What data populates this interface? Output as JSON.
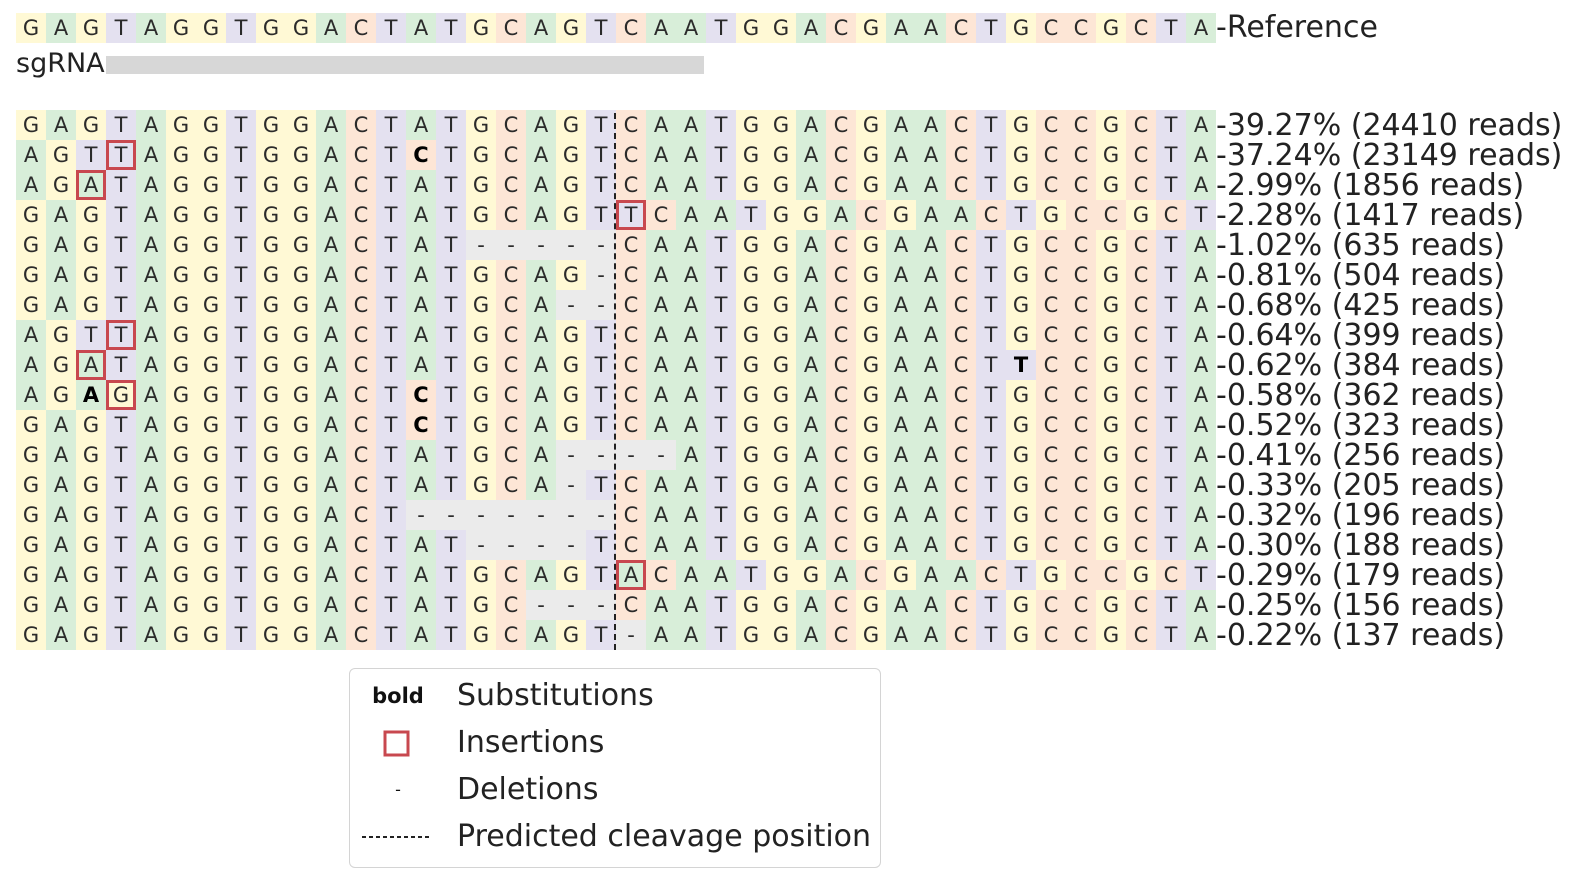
{
  "colors": {
    "A": "#d8eed9",
    "C": "#fde6d6",
    "G": "#fff9d5",
    "T": "#e4e1f0",
    "-": "#ebebeb",
    "insertion": "#c8484f"
  },
  "reference": {
    "sequence": "GAGTAGGTGGACTATGCAGTCAATGGACGAACTGCCGCTA",
    "label": "Reference"
  },
  "sgrna": {
    "label": "sgRNA"
  },
  "rows": [
    {
      "seq": "GAGTAGGTGGACTATGCAGTCAATGGACGAACTGCCGCTA",
      "label": "39.27% (24410 reads)",
      "bold": [],
      "ins": []
    },
    {
      "seq": "AGTTAGGTGGACTCTGCAGTCAATGGACGAACTGCCGCTA",
      "label": "37.24% (23149 reads)",
      "bold": [
        13
      ],
      "ins": [
        3
      ]
    },
    {
      "seq": "AGATAGGTGGACTATGCAGTCAATGGACGAACTGCCGCTA",
      "label": "2.99% (1856 reads)",
      "bold": [],
      "ins": [
        2
      ]
    },
    {
      "seq": "GAGTAGGTGGACTATGCAGTTCAATGGACGAACTGCCGCT",
      "label": "2.28% (1417 reads)",
      "bold": [],
      "ins": [
        20
      ]
    },
    {
      "seq": "GAGTAGGTGGACTAT-----CAATGGACGAACTGCCGCTA",
      "label": "1.02% (635 reads)",
      "bold": [],
      "ins": []
    },
    {
      "seq": "GAGTAGGTGGACTATGCAG-CAATGGACGAACTGCCGCTA",
      "label": "0.81% (504 reads)",
      "bold": [],
      "ins": []
    },
    {
      "seq": "GAGTAGGTGGACTATGCA--CAATGGACGAACTGCCGCTA",
      "label": "0.68% (425 reads)",
      "bold": [],
      "ins": []
    },
    {
      "seq": "AGTTAGGTGGACTATGCAGTCAATGGACGAACTGCCGCTA",
      "label": "0.64% (399 reads)",
      "bold": [],
      "ins": [
        3
      ]
    },
    {
      "seq": "AGATAGGTGGACTATGCAGTCAATGGACGAACTTCCGCTA",
      "label": "0.62% (384 reads)",
      "bold": [
        33
      ],
      "ins": [
        2
      ]
    },
    {
      "seq": "AGAGAGGTGGACTCTGCAGTCAATGGACGAACTGCCGCTA",
      "label": "0.58% (362 reads)",
      "bold": [
        2,
        13
      ],
      "ins": [
        3
      ]
    },
    {
      "seq": "GAGTAGGTGGACTCTGCAGTCAATGGACGAACTGCCGCTA",
      "label": "0.52% (323 reads)",
      "bold": [
        13
      ],
      "ins": []
    },
    {
      "seq": "GAGTAGGTGGACTATGCA----ATGGACGAACTGCCGCTA",
      "label": "0.41% (256 reads)",
      "bold": [],
      "ins": []
    },
    {
      "seq": "GAGTAGGTGGACTATGCA-TCAATGGACGAACTGCCGCTA",
      "label": "0.33% (205 reads)",
      "bold": [],
      "ins": []
    },
    {
      "seq": "GAGTAGGTGGACT-------CAATGGACGAACTGCCGCTA",
      "label": "0.32% (196 reads)",
      "bold": [],
      "ins": []
    },
    {
      "seq": "GAGTAGGTGGACTAT----TCAATGGACGAACTGCCGCTA",
      "label": "0.30% (188 reads)",
      "bold": [],
      "ins": []
    },
    {
      "seq": "GAGTAGGTGGACTATGCAGTACAATGGACGAACTGCCGCT",
      "label": "0.29% (179 reads)",
      "bold": [],
      "ins": [
        20
      ]
    },
    {
      "seq": "GAGTAGGTGGACTATGC---CAATGGACGAACTGCCGCTA",
      "label": "0.25% (156 reads)",
      "bold": [],
      "ins": []
    },
    {
      "seq": "GAGTAGGTGGACTATGCAGT-AATGGACGAACTGCCGCTA",
      "label": "0.22% (137 reads)",
      "bold": [],
      "ins": []
    }
  ],
  "legend": {
    "substitutions": {
      "key": "bold",
      "label": "Substitutions"
    },
    "insertions": {
      "label": "Insertions"
    },
    "deletions": {
      "key": "-",
      "label": "Deletions"
    },
    "cleavage": {
      "label": "Predicted cleavage position"
    }
  }
}
